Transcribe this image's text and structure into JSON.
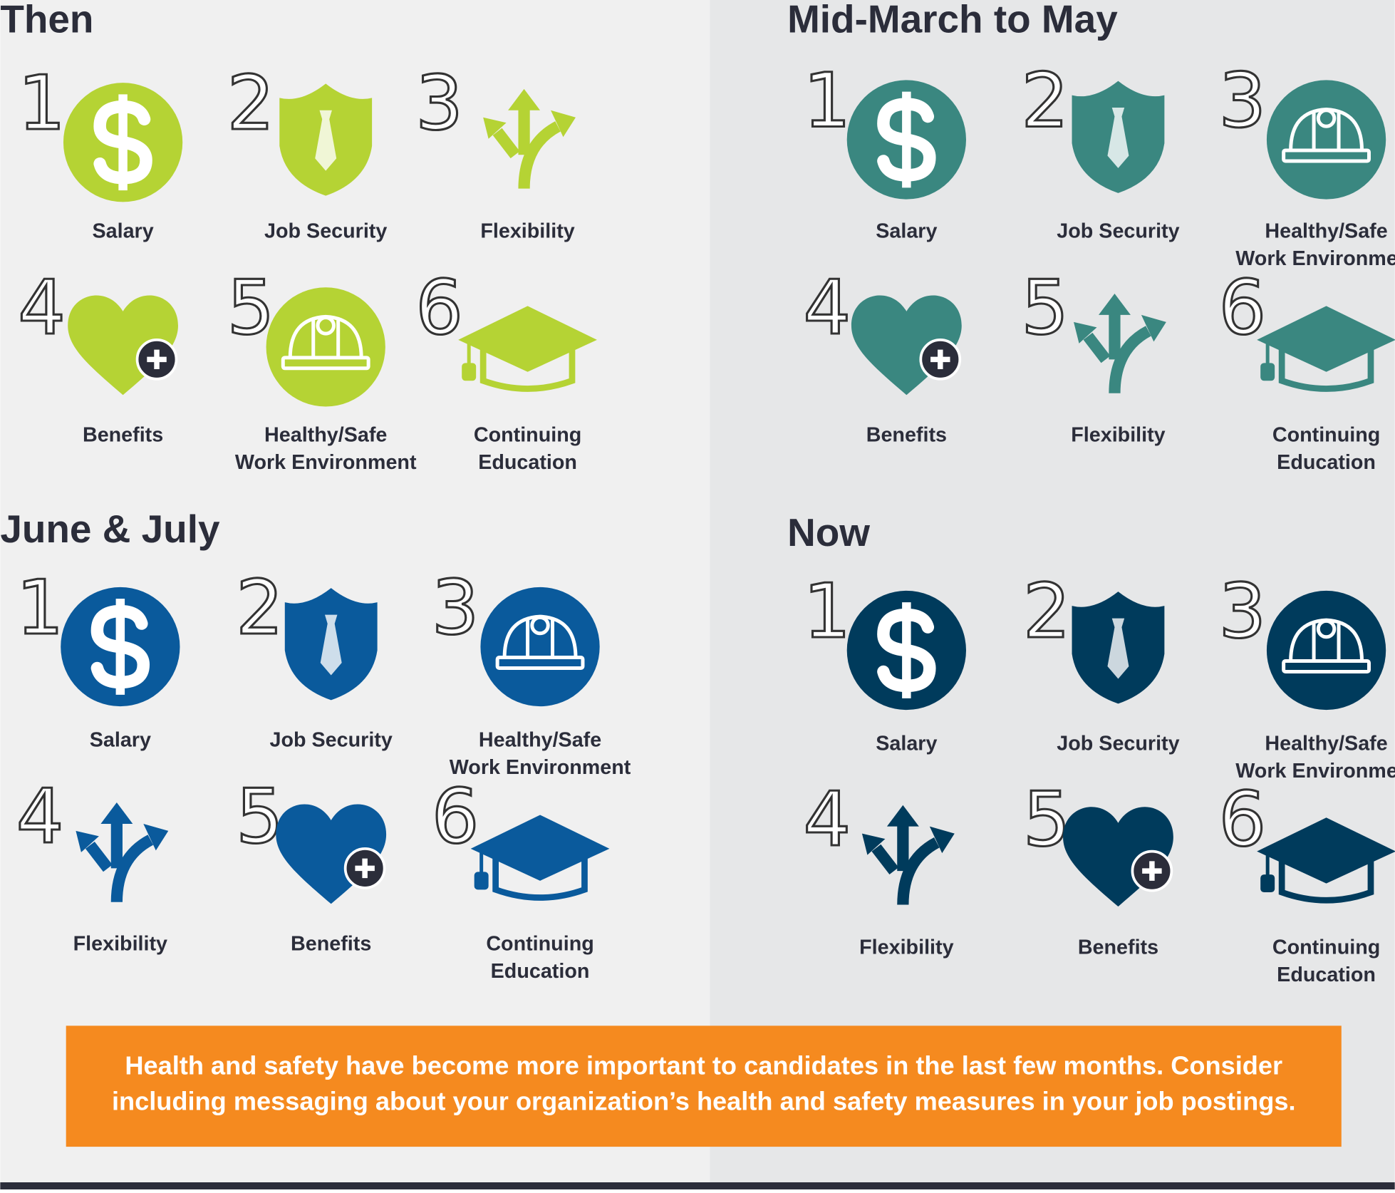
{
  "panels": [
    {
      "title": "Then",
      "color": "#b5d334",
      "items": [
        {
          "rank": "1",
          "label": [
            "Salary"
          ]
        },
        {
          "rank": "2",
          "label": [
            "Job Security"
          ]
        },
        {
          "rank": "3",
          "label": [
            "Flexibility"
          ]
        },
        {
          "rank": "4",
          "label": [
            "Benefits"
          ]
        },
        {
          "rank": "5",
          "label": [
            "Healthy/Safe",
            "Work Environment"
          ]
        },
        {
          "rank": "6",
          "label": [
            "Continuing",
            "Education"
          ]
        }
      ]
    },
    {
      "title": "Mid-March to May",
      "color": "#3a8780",
      "items": [
        {
          "rank": "1",
          "label": [
            "Salary"
          ]
        },
        {
          "rank": "2",
          "label": [
            "Job Security"
          ]
        },
        {
          "rank": "3",
          "label": [
            "Healthy/Safe",
            "Work Environment"
          ]
        },
        {
          "rank": "4",
          "label": [
            "Benefits"
          ]
        },
        {
          "rank": "5",
          "label": [
            "Flexibility"
          ]
        },
        {
          "rank": "6",
          "label": [
            "Continuing",
            "Education"
          ]
        }
      ]
    },
    {
      "title": "June & July",
      "color": "#0a5a9c",
      "items": [
        {
          "rank": "1",
          "label": [
            "Salary"
          ]
        },
        {
          "rank": "2",
          "label": [
            "Job Security"
          ]
        },
        {
          "rank": "3",
          "label": [
            "Healthy/Safe",
            "Work Environment"
          ]
        },
        {
          "rank": "4",
          "label": [
            "Flexibility"
          ]
        },
        {
          "rank": "5",
          "label": [
            "Benefits"
          ]
        },
        {
          "rank": "6",
          "label": [
            "Continuing",
            "Education"
          ]
        }
      ]
    },
    {
      "title": "Now",
      "color": "#003b5c",
      "items": [
        {
          "rank": "1",
          "label": [
            "Salary"
          ]
        },
        {
          "rank": "2",
          "label": [
            "Job Security"
          ]
        },
        {
          "rank": "3",
          "label": [
            "Healthy/Safe",
            "Work Environment"
          ]
        },
        {
          "rank": "4",
          "label": [
            "Flexibility"
          ]
        },
        {
          "rank": "5",
          "label": [
            "Benefits"
          ]
        },
        {
          "rank": "6",
          "label": [
            "Continuing",
            "Education"
          ]
        }
      ]
    }
  ],
  "footer": {
    "lines": [
      "Health and safety have become more important to candidates in the last few months. Consider",
      "including messaging about your organization’s health and safety measures in your job postings."
    ]
  }
}
